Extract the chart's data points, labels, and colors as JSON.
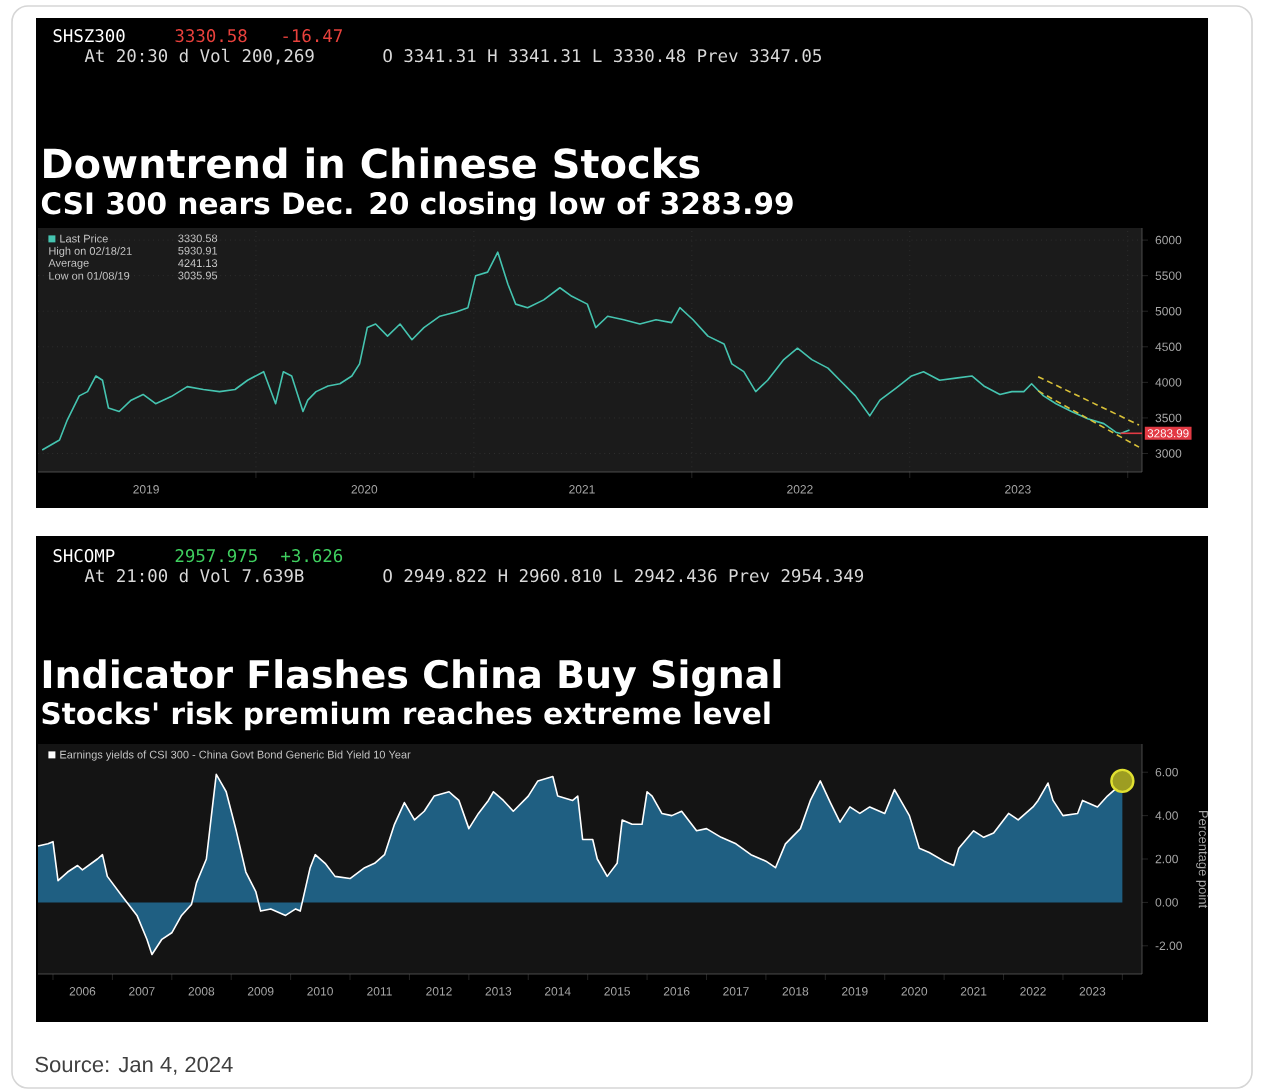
{
  "chart_data": [
    {
      "type": "line",
      "title": "Downtrend in Chinese Stocks",
      "subtitle": "CSI 300 nears Dec. 20 closing low of 3283.99",
      "annotations": [
        "SHSZ300",
        "3330.58",
        "-16.47",
        "At 20:30 d Vol 200,269",
        "O 3341.31 H 3341.31 L 3330.48 Prev 3347.05",
        "3330.58",
        "High on 02/18/21",
        "5930.91",
        "Average",
        "4241.13",
        "Low on 01/08/19",
        "3035.95",
        {
          "text": "3283.99",
          "x": "2023-12-20",
          "y": 3283.99
        }
      ],
      "x": [
        "2019-01-08",
        "2019-02-06",
        "2019-02-19",
        "2019-03-11",
        "2019-03-25",
        "2019-04-08",
        "2019-04-19",
        "2019-04-29",
        "2019-05-17",
        "2019-06-06",
        "2019-06-26",
        "2019-07-17",
        "2019-08-12",
        "2019-09-08",
        "2019-10-05",
        "2019-11-01",
        "2019-11-27",
        "2019-12-18",
        "2020-01-14",
        "2020-02-03",
        "2020-02-16",
        "2020-03-01",
        "2020-03-20",
        "2020-03-28",
        "2020-04-11",
        "2020-05-01",
        "2020-05-21",
        "2020-06-10",
        "2020-06-23",
        "2020-07-06",
        "2020-07-20",
        "2020-08-09",
        "2020-08-30",
        "2020-09-19",
        "2020-10-09",
        "2020-11-05",
        "2020-12-02",
        "2020-12-22",
        "2021-01-04",
        "2021-01-24",
        "2021-02-10",
        "2021-02-27",
        "2021-03-12",
        "2021-04-01",
        "2021-04-28",
        "2021-05-25",
        "2021-06-14",
        "2021-07-10",
        "2021-07-24",
        "2021-08-13",
        "2021-09-09",
        "2021-10-06",
        "2021-11-02",
        "2021-11-28",
        "2021-12-12",
        "2022-01-03",
        "2022-01-28",
        "2022-02-24",
        "2022-03-09",
        "2022-03-29",
        "2022-04-18",
        "2022-05-08",
        "2022-06-04",
        "2022-06-27",
        "2022-07-21",
        "2022-08-17",
        "2022-09-06",
        "2022-10-02",
        "2022-10-26",
        "2022-11-12",
        "2022-12-09",
        "2023-01-04",
        "2023-01-24",
        "2023-02-20",
        "2023-03-19",
        "2023-04-15",
        "2023-05-05",
        "2023-06-01",
        "2023-06-21",
        "2023-07-11",
        "2023-07-24",
        "2023-08-13",
        "2023-09-03",
        "2023-09-29",
        "2023-10-26",
        "2023-11-22",
        "2023-12-12",
        "2023-12-20",
        "2024-01-04"
      ],
      "series": [
        {
          "name": "Last Price",
          "color": "#45c4b0",
          "values": [
            3050,
            3190,
            3470,
            3810,
            3870,
            4090,
            4030,
            3640,
            3590,
            3750,
            3830,
            3700,
            3800,
            3940,
            3900,
            3870,
            3900,
            4030,
            4150,
            3700,
            4150,
            4090,
            3590,
            3750,
            3870,
            3950,
            3980,
            4090,
            4260,
            4770,
            4820,
            4650,
            4820,
            4600,
            4770,
            4930,
            4990,
            5050,
            5500,
            5550,
            5830,
            5380,
            5100,
            5050,
            5160,
            5330,
            5210,
            5100,
            4770,
            4930,
            4880,
            4820,
            4880,
            4840,
            5050,
            4880,
            4650,
            4540,
            4260,
            4150,
            3870,
            4030,
            4320,
            4480,
            4320,
            4200,
            4030,
            3810,
            3530,
            3750,
            3920,
            4090,
            4150,
            4030,
            4060,
            4090,
            3950,
            3830,
            3870,
            3870,
            3980,
            3810,
            3700,
            3590,
            3490,
            3420,
            3300,
            3280,
            3330
          ]
        },
        {
          "type": "line",
          "color": "#d8c038",
          "line_style": "dashed",
          "x": [
            "2023-08-04",
            "2024-01-20"
          ],
          "values": [
            4080,
            3400
          ]
        },
        {
          "type": "line",
          "color": "#d8c038",
          "line_style": "dashed",
          "x": [
            "2023-08-04",
            "2024-01-20"
          ],
          "values": [
            3880,
            3090
          ]
        }
      ],
      "xlim": [
        "2019-01-01",
        "2024-01-25"
      ],
      "xticks": [
        {
          "value": "2019-07-01",
          "label": "2019"
        },
        {
          "value": "2020-01-01",
          "label": null
        },
        {
          "value": "2020-07-01",
          "label": "2020"
        },
        {
          "value": "2021-01-01",
          "label": null
        },
        {
          "value": "2021-07-01",
          "label": "2021"
        },
        {
          "value": "2022-01-01",
          "label": null
        },
        {
          "value": "2022-07-01",
          "label": "2022"
        },
        {
          "value": "2023-01-01",
          "label": null
        },
        {
          "value": "2023-07-01",
          "label": "2023"
        },
        {
          "value": "2024-01-01",
          "label": null
        }
      ],
      "ylim": [
        2740,
        6170
      ],
      "yticks": [
        3000,
        3500,
        4000,
        4500,
        5000,
        5500,
        6000
      ],
      "grid": true,
      "legend": "top left"
    },
    {
      "type": "area",
      "title": "Indicator Flashes China Buy Signal",
      "subtitle": "Stocks' risk premium reaches extreme level",
      "ylabel": "Percentage point",
      "annotations": [
        "SHCOMP",
        "2957.975",
        "+3.626",
        "At 21:00 d Vol 7.639B",
        "O 2949.822 H 2960.810 L 2942.436 Prev 2954.349",
        "Source: Jan 4, 2024"
      ],
      "x": [
        "2005-10",
        "2005-12",
        "2006-01",
        "2006-02",
        "2006-04",
        "2006-06",
        "2006-07",
        "2006-10",
        "2006-11",
        "2006-12",
        "2007-03",
        "2007-06",
        "2007-08",
        "2007-09",
        "2007-11",
        "2008-01",
        "2008-03",
        "2008-05",
        "2008-06",
        "2008-08",
        "2008-09",
        "2008-10",
        "2008-11",
        "2008-12",
        "2009-02",
        "2009-04",
        "2009-06",
        "2009-07",
        "2009-09",
        "2009-12",
        "2010-02",
        "2010-03",
        "2010-05",
        "2010-06",
        "2010-08",
        "2010-10",
        "2011-01",
        "2011-04",
        "2011-06",
        "2011-08",
        "2011-10",
        "2011-12",
        "2012-02",
        "2012-04",
        "2012-06",
        "2012-09",
        "2012-10",
        "2012-11",
        "2013-01",
        "2013-03",
        "2013-05",
        "2013-06",
        "2013-08",
        "2013-10",
        "2014-01",
        "2014-03",
        "2014-06",
        "2014-07",
        "2014-10",
        "2014-11",
        "2014-12",
        "2015-02",
        "2015-03",
        "2015-05",
        "2015-07",
        "2015-08",
        "2015-10",
        "2015-12",
        "2016-01",
        "2016-02",
        "2016-04",
        "2016-06",
        "2016-08",
        "2016-11",
        "2017-01",
        "2017-04",
        "2017-07",
        "2017-10",
        "2018-01",
        "2018-03",
        "2018-05",
        "2018-08",
        "2018-10",
        "2018-12",
        "2019-02",
        "2019-04",
        "2019-06",
        "2019-08",
        "2019-10",
        "2020-01",
        "2020-03",
        "2020-06",
        "2020-08",
        "2020-10",
        "2021-01",
        "2021-03",
        "2021-04",
        "2021-07",
        "2021-09",
        "2021-11",
        "2022-02",
        "2022-04",
        "2022-07",
        "2022-08",
        "2022-10",
        "2022-11",
        "2023-01",
        "2023-04",
        "2023-05",
        "2023-08",
        "2023-10",
        "2023-12",
        "2024-01"
      ],
      "series": [
        {
          "name": "Earnings yields of CSI 300 - China Govt Bond Generic Bid Yield 10 Year",
          "color": "#ffffff",
          "values": [
            2.6,
            2.7,
            2.8,
            1.0,
            1.4,
            1.7,
            1.5,
            2.0,
            2.2,
            1.2,
            0.3,
            -0.6,
            -1.7,
            -2.4,
            -1.7,
            -1.4,
            -0.6,
            -0.1,
            0.9,
            2.0,
            4.0,
            5.9,
            5.5,
            5.1,
            3.3,
            1.4,
            0.5,
            -0.4,
            -0.3,
            -0.6,
            -0.3,
            -0.4,
            1.6,
            2.2,
            1.8,
            1.2,
            1.1,
            1.6,
            1.8,
            2.2,
            3.6,
            4.6,
            3.8,
            4.2,
            4.9,
            5.1,
            4.9,
            4.7,
            3.4,
            4.1,
            4.7,
            5.1,
            4.7,
            4.2,
            4.9,
            5.6,
            5.8,
            4.9,
            4.7,
            4.9,
            2.9,
            2.9,
            2.0,
            1.2,
            1.8,
            3.8,
            3.6,
            3.6,
            5.1,
            4.9,
            4.1,
            4.0,
            4.2,
            3.3,
            3.4,
            3.0,
            2.7,
            2.2,
            1.9,
            1.6,
            2.7,
            3.4,
            4.7,
            5.6,
            4.6,
            3.7,
            4.4,
            4.1,
            4.4,
            4.1,
            5.2,
            4.0,
            2.5,
            2.3,
            1.9,
            1.7,
            2.5,
            3.3,
            3.0,
            3.2,
            4.1,
            3.8,
            4.4,
            4.7,
            5.5,
            4.7,
            4.0,
            4.1,
            4.7,
            4.4,
            4.9,
            5.3,
            5.6
          ]
        },
        {
          "type": "scatter",
          "color": "#e0e030",
          "x": [
            "2024-01"
          ],
          "values": [
            5.6
          ]
        }
      ],
      "xlim": [
        "2005-10",
        "2024-05"
      ],
      "xticks": [
        {
          "value": "2006-01",
          "label": null
        },
        {
          "value": "2006-07",
          "label": "2006"
        },
        {
          "value": "2007-01",
          "label": null
        },
        {
          "value": "2007-07",
          "label": "2007"
        },
        {
          "value": "2008-01",
          "label": null
        },
        {
          "value": "2008-07",
          "label": "2008"
        },
        {
          "value": "2009-01",
          "label": null
        },
        {
          "value": "2009-07",
          "label": "2009"
        },
        {
          "value": "2010-01",
          "label": null
        },
        {
          "value": "2010-07",
          "label": "2010"
        },
        {
          "value": "2011-01",
          "label": null
        },
        {
          "value": "2011-07",
          "label": "2011"
        },
        {
          "value": "2012-01",
          "label": null
        },
        {
          "value": "2012-07",
          "label": "2012"
        },
        {
          "value": "2013-01",
          "label": null
        },
        {
          "value": "2013-07",
          "label": "2013"
        },
        {
          "value": "2014-01",
          "label": null
        },
        {
          "value": "2014-07",
          "label": "2014"
        },
        {
          "value": "2015-01",
          "label": null
        },
        {
          "value": "2015-07",
          "label": "2015"
        },
        {
          "value": "2016-01",
          "label": null
        },
        {
          "value": "2016-07",
          "label": "2016"
        },
        {
          "value": "2017-01",
          "label": null
        },
        {
          "value": "2017-07",
          "label": "2017"
        },
        {
          "value": "2018-01",
          "label": null
        },
        {
          "value": "2018-07",
          "label": "2018"
        },
        {
          "value": "2019-01",
          "label": null
        },
        {
          "value": "2019-07",
          "label": "2019"
        },
        {
          "value": "2020-01",
          "label": null
        },
        {
          "value": "2020-07",
          "label": "2020"
        },
        {
          "value": "2021-01",
          "label": null
        },
        {
          "value": "2021-07",
          "label": "2021"
        },
        {
          "value": "2022-01",
          "label": null
        },
        {
          "value": "2022-07",
          "label": "2022"
        },
        {
          "value": "2023-01",
          "label": null
        },
        {
          "value": "2023-07",
          "label": "2023"
        },
        {
          "value": "2024-01",
          "label": null
        }
      ],
      "ylim": [
        -3.3,
        7.3
      ],
      "yticks": [
        {
          "value": -2,
          "label": "-2.00"
        },
        {
          "value": 0,
          "label": "0.00"
        },
        {
          "value": 2,
          "label": "2.00"
        },
        {
          "value": 4,
          "label": "4.00"
        },
        {
          "value": 6,
          "label": "6.00"
        }
      ],
      "legend": "top left"
    }
  ]
}
